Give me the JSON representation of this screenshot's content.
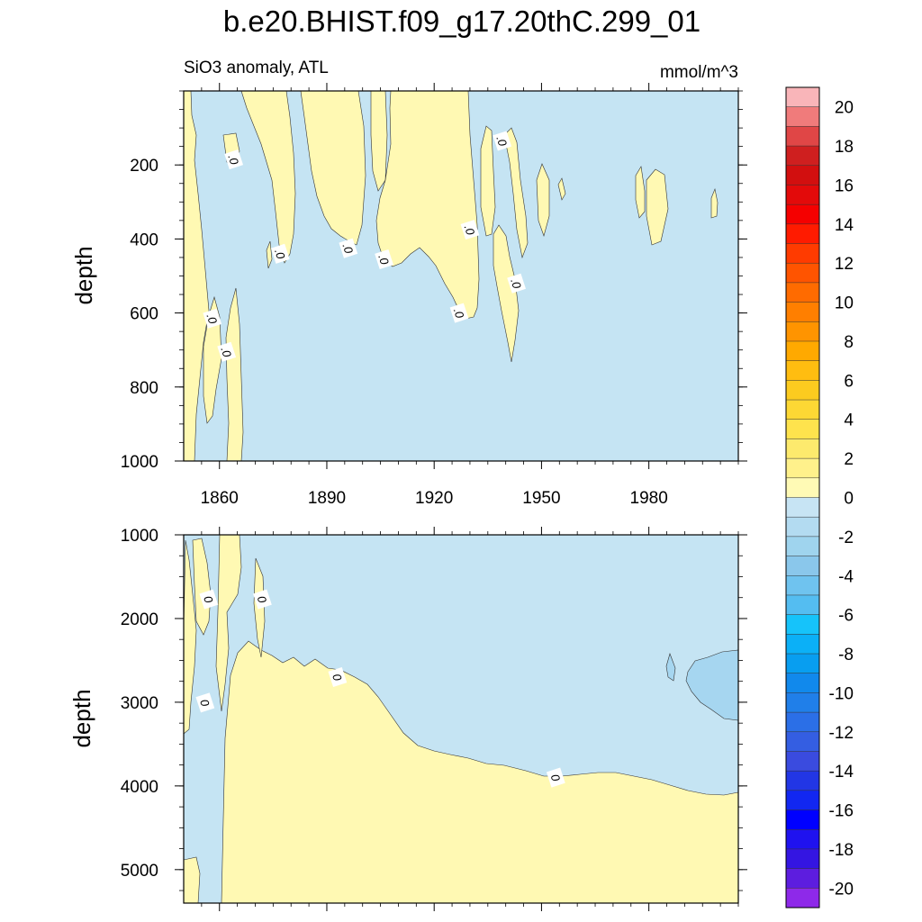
{
  "chart_data": {
    "type": "heatmap",
    "title": "b.e20.BHIST.f09_g17.20thC.299_01",
    "subtitle_left": "SiO3 anomaly, ATL",
    "subtitle_right": "mmol/m^3",
    "ylabel": "depth",
    "xlim": [
      1850,
      2005
    ],
    "x_ticks": [
      1860,
      1890,
      1920,
      1950,
      1980
    ],
    "grid": false,
    "legend_position": "right",
    "panels": [
      {
        "name": "upper",
        "ylim": [
          1000,
          0
        ],
        "y_ticks": [
          200,
          400,
          600,
          800,
          1000
        ],
        "contour_labels": [
          {
            "x": 1864,
            "y": 185,
            "text": ".0"
          },
          {
            "x": 1877,
            "y": 440,
            "text": ".0"
          },
          {
            "x": 1896,
            "y": 425,
            "text": ".0"
          },
          {
            "x": 1906,
            "y": 455,
            "text": ".0"
          },
          {
            "x": 1927,
            "y": 600,
            "text": ".0"
          },
          {
            "x": 1930,
            "y": 375,
            "text": ".0"
          },
          {
            "x": 1939,
            "y": 135,
            "text": ".0"
          },
          {
            "x": 1943,
            "y": 520,
            "text": ".0"
          },
          {
            "x": 1858,
            "y": 615,
            "text": ".0"
          },
          {
            "x": 1862,
            "y": 705,
            "text": ".0"
          }
        ]
      },
      {
        "name": "lower",
        "ylim": [
          5400,
          1000
        ],
        "y_ticks": [
          1000,
          2000,
          3000,
          4000,
          5000
        ],
        "contour_labels": [
          {
            "x": 1857,
            "y": 1770,
            "text": "0"
          },
          {
            "x": 1872,
            "y": 1770,
            "text": "0"
          },
          {
            "x": 1856,
            "y": 3005,
            "text": "0"
          },
          {
            "x": 1893,
            "y": 2700,
            "text": "0"
          },
          {
            "x": 1954,
            "y": 3900,
            "text": "0"
          }
        ]
      }
    ],
    "colorbar": {
      "min": -21,
      "max": 21,
      "step": 1,
      "tick_labels": [
        "20",
        "18",
        "16",
        "14",
        "12",
        "10",
        "8",
        "6",
        "4",
        "2",
        "0",
        "-2",
        "-4",
        "-6",
        "-8",
        "-10",
        "-12",
        "-14",
        "-16",
        "-18",
        "-20"
      ],
      "colors": [
        "#f9b5b9",
        "#f07b7b",
        "#e04646",
        "#cf1f1f",
        "#d20f0f",
        "#e30a0a",
        "#f50000",
        "#ff1b00",
        "#ff3b00",
        "#ff5400",
        "#ff6b00",
        "#ff7f00",
        "#ff9400",
        "#ffa900",
        "#ffbd10",
        "#fccb1f",
        "#fdd834",
        "#fee34d",
        "#fdea6d",
        "#fff18b",
        "#fffab5",
        "#c7e4f4",
        "#b3dbf1",
        "#9fd4ee",
        "#8ac7eb",
        "#6fc3ef",
        "#54bdf1",
        "#16c3fa",
        "#0bb0f7",
        "#089ef0",
        "#1189ec",
        "#207fe9",
        "#2b6fe7",
        "#345ee2",
        "#3a4bdf",
        "#2236e5",
        "#1227f1",
        "#0000ff",
        "#1f12ef",
        "#3415e2",
        "#5d1ddf",
        "#8e29e9"
      ]
    }
  }
}
